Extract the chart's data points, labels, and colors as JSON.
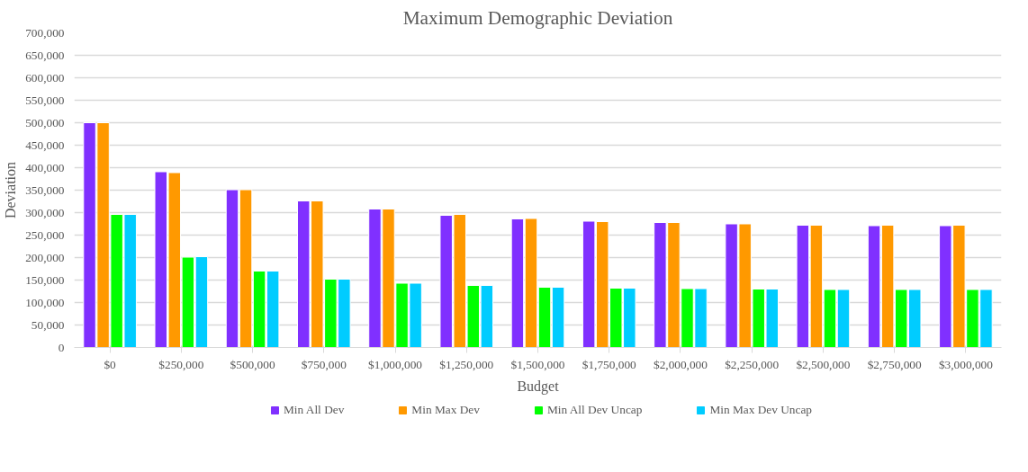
{
  "chart_data": {
    "type": "bar",
    "title": "Maximum Demographic Deviation",
    "xlabel": "Budget",
    "ylabel": "Deviation",
    "categories": [
      "$0",
      "$250,000",
      "$500,000",
      "$750,000",
      "$1,000,000",
      "$1,250,000",
      "$1,500,000",
      "$1,750,000",
      "$2,000,000",
      "$2,250,000",
      "$2,500,000",
      "$2,750,000",
      "$3,000,000"
    ],
    "series": [
      {
        "name": "Min All Dev",
        "color": "#8030ff",
        "values": [
          500000,
          391000,
          351000,
          326000,
          308000,
          294000,
          286000,
          281000,
          278000,
          275000,
          272000,
          271000,
          271000
        ]
      },
      {
        "name": "Min Max Dev",
        "color": "#ff9900",
        "values": [
          500000,
          389000,
          351000,
          326000,
          308000,
          296000,
          287000,
          280000,
          278000,
          275000,
          272000,
          272000,
          272000
        ]
      },
      {
        "name": "Min All Dev Uncap",
        "color": "#00ff00",
        "values": [
          296000,
          201000,
          170000,
          152000,
          143000,
          138000,
          134000,
          132000,
          131000,
          130000,
          129000,
          129000,
          129000
        ]
      },
      {
        "name": "Min Max Dev Uncap",
        "color": "#00ccff",
        "values": [
          296000,
          202000,
          170000,
          152000,
          143000,
          138000,
          134000,
          132000,
          131000,
          130000,
          129000,
          129000,
          129000
        ]
      }
    ],
    "ylim": [
      0,
      700000
    ],
    "yticks": [
      {
        "value": 0,
        "label": "0"
      },
      {
        "value": 50000,
        "label": "50,000"
      },
      {
        "value": 100000,
        "label": "100,000"
      },
      {
        "value": 150000,
        "label": "150,000"
      },
      {
        "value": 200000,
        "label": "200,000"
      },
      {
        "value": 250000,
        "label": "250,000"
      },
      {
        "value": 300000,
        "label": "300,000"
      },
      {
        "value": 350000,
        "label": "350,000"
      },
      {
        "value": 400000,
        "label": "400,000"
      },
      {
        "value": 450000,
        "label": "450,000"
      },
      {
        "value": 500000,
        "label": "500,000"
      },
      {
        "value": 550000,
        "label": "550,000"
      },
      {
        "value": 600000,
        "label": "600,000"
      },
      {
        "value": 650000,
        "label": "650,000"
      },
      {
        "value": 700000,
        "label": "700,000"
      }
    ],
    "grid": "y",
    "legend": "bottom"
  }
}
